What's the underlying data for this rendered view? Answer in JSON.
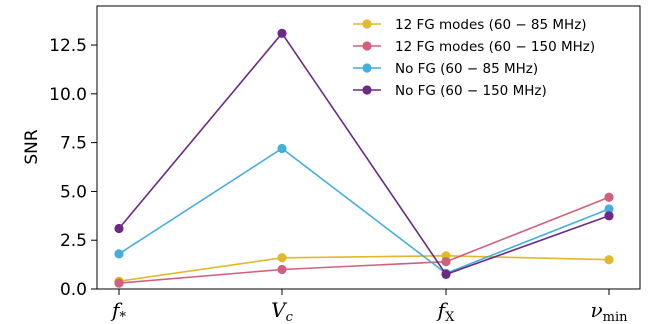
{
  "chart_data": {
    "type": "line",
    "title": "",
    "xlabel": "",
    "ylabel": "SNR",
    "ylim": [
      0,
      14.5
    ],
    "yticks": [
      "0.0",
      "2.5",
      "5.0",
      "7.5",
      "10.0",
      "12.5"
    ],
    "categories": [
      {
        "base": "f",
        "sub": "*"
      },
      {
        "base": "V",
        "sub": "c"
      },
      {
        "base": "f",
        "sub": "X"
      },
      {
        "base": "ν",
        "sub": "min"
      }
    ],
    "grid": false,
    "legend_position": "top-right",
    "series": [
      {
        "name": "12 FG modes (60 − 85 MHz)",
        "color": "#e0b92c",
        "values": [
          0.4,
          1.6,
          1.7,
          1.5
        ]
      },
      {
        "name": "12 FG modes (60 − 150 MHz)",
        "color": "#d0607e",
        "values": [
          0.3,
          1.0,
          1.4,
          4.7
        ]
      },
      {
        "name": "No FG (60 − 85 MHz)",
        "color": "#45aee0",
        "values": [
          1.8,
          7.2,
          0.8,
          4.1
        ]
      },
      {
        "name": "No FG (60 − 150 MHz)",
        "color": "#6b2a85",
        "values": [
          3.1,
          13.1,
          0.75,
          3.75
        ]
      }
    ]
  }
}
